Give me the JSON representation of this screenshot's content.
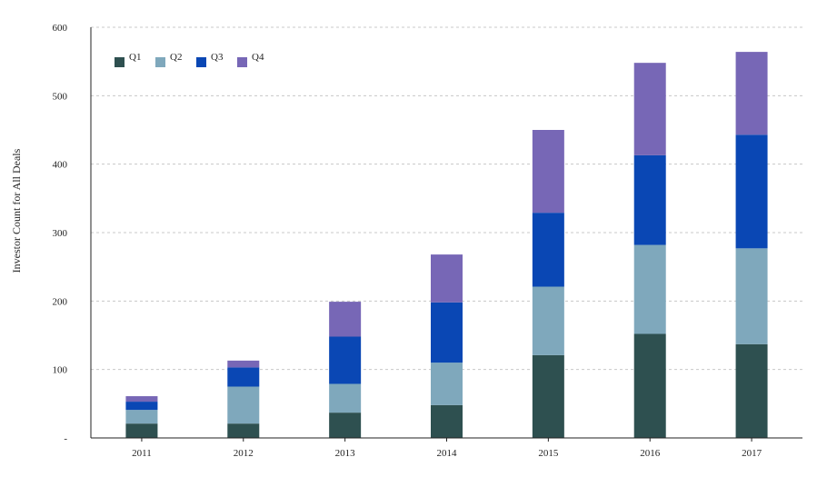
{
  "chart_data": {
    "type": "bar",
    "stacked": true,
    "categories": [
      "2011",
      "2012",
      "2013",
      "2014",
      "2015",
      "2016",
      "2017"
    ],
    "series": [
      {
        "name": "Q1",
        "color": "#2e5050",
        "values": [
          21,
          21,
          37,
          48,
          121,
          152,
          137
        ]
      },
      {
        "name": "Q2",
        "color": "#7fa8bc",
        "values": [
          20,
          54,
          42,
          62,
          100,
          130,
          140
        ]
      },
      {
        "name": "Q3",
        "color": "#0a47b4",
        "values": [
          12,
          28,
          69,
          88,
          108,
          131,
          166
        ]
      },
      {
        "name": "Q4",
        "color": "#7767b6",
        "values": [
          8,
          10,
          51,
          70,
          121,
          135,
          121
        ]
      }
    ],
    "title": "",
    "xlabel": "",
    "ylabel": "Investor Count for All Deals",
    "ylim": [
      0,
      600
    ],
    "yticks": [
      0,
      100,
      200,
      300,
      400,
      500,
      600
    ],
    "ytick_labels": [
      "-",
      "100",
      "200",
      "300",
      "400",
      "500",
      "600"
    ],
    "grid": "horizontal dashed",
    "legend_position": "top-left"
  }
}
